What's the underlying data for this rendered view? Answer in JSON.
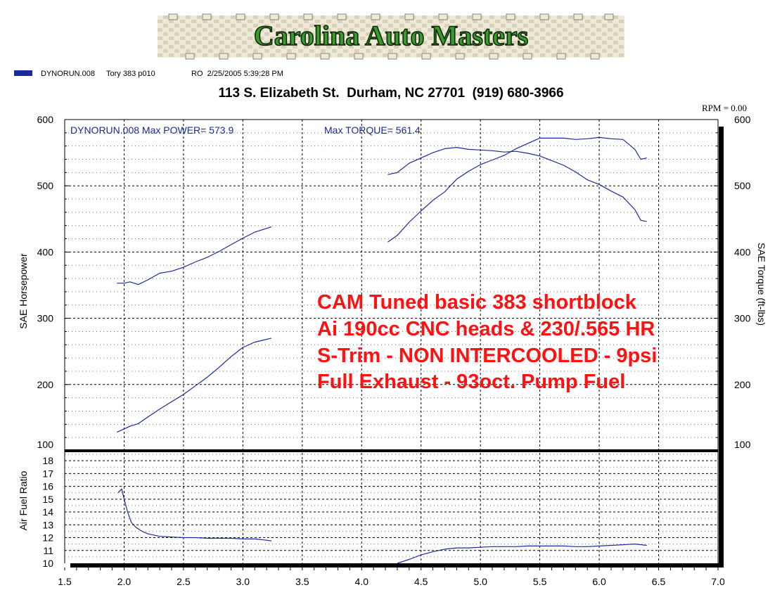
{
  "header": {
    "logo_text": "Carolina Auto Masters",
    "legend_entry": "DYNORUN.008",
    "run_description": "Tory 383 p010",
    "run_info": "RO  2/25/2005 5:39:28 PM",
    "address": "113 S. Elizabeth St.  Durham, NC 27701  (919) 680-3966",
    "rpm_readout": "RPM = 0.00"
  },
  "chart_data": {
    "type": "line",
    "title": "",
    "max_power_label": "DYNORUN.008  Max POWER= 573.9",
    "max_torque_label": "Max TORQUE= 561.4",
    "xlabel": "",
    "xlim": [
      1.5,
      7.0
    ],
    "xticks": [
      "1.5",
      "2.0",
      "2.5",
      "3.0",
      "3.5",
      "4.0",
      "4.5",
      "5.0",
      "5.5",
      "6.0",
      "6.5",
      "7.0"
    ],
    "grid": true,
    "colors": {
      "series": "#1a2a9a",
      "annotation": "#ff1111",
      "logo_text": "#3a9a2a"
    },
    "upper_panel": {
      "ylabel_left": "SAE Horsepower",
      "ylabel_right": "SAE Torque (ft-lbs)",
      "ylim": [
        100,
        600
      ],
      "yticks": [
        "100",
        "200",
        "300",
        "400",
        "500",
        "600"
      ],
      "series": [
        {
          "name": "DYNORUN.008",
          "segments": [
            {
              "x": [
                1.94,
                2.0,
                2.05,
                2.12,
                2.2,
                2.3,
                2.4,
                2.5,
                2.6,
                2.7,
                2.8,
                2.9,
                3.0,
                3.1,
                3.24
              ],
              "y": [
                128,
                133,
                137,
                141,
                151,
                163,
                174,
                185,
                198,
                211,
                226,
                242,
                256,
                264,
                270
              ]
            },
            {
              "x": [
                4.22,
                4.3,
                4.4,
                4.5,
                4.6,
                4.7,
                4.8,
                4.9,
                5.0,
                5.1,
                5.2,
                5.3,
                5.4,
                5.5,
                5.6,
                5.7,
                5.8,
                5.9,
                6.0,
                6.1,
                6.2,
                6.3,
                6.35,
                6.4
              ],
              "y": [
                415,
                425,
                445,
                462,
                478,
                491,
                510,
                522,
                532,
                539,
                546,
                556,
                564,
                572,
                572,
                572,
                570,
                571,
                573,
                571,
                570,
                555,
                540,
                542
              ]
            }
          ]
        },
        {
          "name": "DYNORUN.008",
          "segments": [
            {
              "x": [
                1.94,
                2.0,
                2.05,
                2.12,
                2.2,
                2.3,
                2.4,
                2.5,
                2.6,
                2.7,
                2.8,
                2.9,
                3.0,
                3.1,
                3.24
              ],
              "y": [
                353,
                353,
                355,
                351,
                358,
                368,
                371,
                377,
                385,
                392,
                401,
                411,
                421,
                430,
                438
              ]
            },
            {
              "x": [
                4.22,
                4.3,
                4.4,
                4.5,
                4.6,
                4.7,
                4.8,
                4.9,
                5.0,
                5.1,
                5.2,
                5.3,
                5.4,
                5.5,
                5.6,
                5.7,
                5.8,
                5.9,
                6.0,
                6.1,
                6.2,
                6.3,
                6.35,
                6.4
              ],
              "y": [
                517,
                520,
                534,
                542,
                550,
                556,
                558,
                555,
                554,
                553,
                551,
                552,
                549,
                545,
                538,
                531,
                521,
                509,
                502,
                492,
                483,
                464,
                448,
                446
              ]
            }
          ]
        }
      ]
    },
    "lower_panel": {
      "ylabel": "Air Fuel Ratio",
      "ylim": [
        10,
        18.5
      ],
      "yticks": [
        "10",
        "11",
        "12",
        "13",
        "14",
        "15",
        "16",
        "17",
        "18"
      ],
      "series": [
        {
          "name": "DYNORUN.008",
          "segments": [
            {
              "x": [
                1.95,
                1.98,
                2.0,
                2.03,
                2.06,
                2.1,
                2.15,
                2.2,
                2.3,
                2.4,
                2.5,
                2.6,
                2.7,
                2.8,
                2.9,
                3.0,
                3.1,
                3.2,
                3.24
              ],
              "y": [
                15.5,
                15.8,
                15.0,
                14.0,
                13.2,
                12.8,
                12.5,
                12.3,
                12.1,
                12.05,
                12.0,
                12.0,
                11.95,
                11.95,
                11.95,
                11.9,
                11.9,
                11.8,
                11.75
              ]
            },
            {
              "x": [
                4.3,
                4.4,
                4.5,
                4.6,
                4.7,
                4.8,
                4.9,
                5.0,
                5.1,
                5.2,
                5.3,
                5.4,
                5.5,
                5.6,
                5.7,
                5.8,
                5.9,
                6.0,
                6.1,
                6.2,
                6.3,
                6.4
              ],
              "y": [
                10.0,
                10.3,
                10.65,
                10.9,
                11.1,
                11.2,
                11.2,
                11.25,
                11.3,
                11.3,
                11.3,
                11.35,
                11.35,
                11.35,
                11.35,
                11.3,
                11.3,
                11.35,
                11.4,
                11.45,
                11.5,
                11.4
              ]
            }
          ]
        }
      ]
    },
    "annotation_lines": [
      "CAM Tuned basic 383 shortblock",
      "Ai 190cc CNC heads & 230/.565 HR",
      "S-Trim - NON INTERCOOLED - 9psi",
      "Full Exhaust - 93oct. Pump Fuel"
    ]
  }
}
